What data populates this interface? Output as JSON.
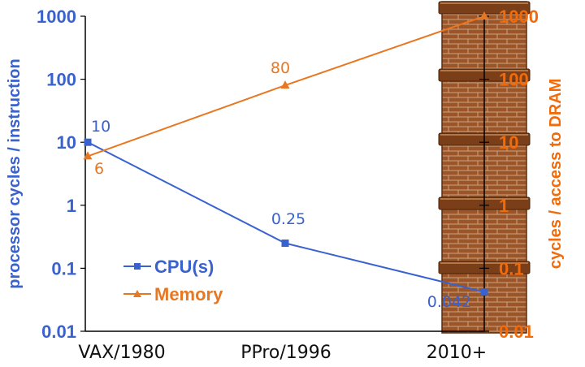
{
  "chart_data": {
    "type": "line",
    "categories": [
      "VAX/1980",
      "PPro/1996",
      "2010+"
    ],
    "series": [
      {
        "name": "CPU(s)",
        "values": [
          10,
          0.25,
          0.042
        ],
        "labels": [
          "10",
          "0.25",
          "0.042"
        ],
        "color": "#3a62cf",
        "marker": "square"
      },
      {
        "name": "Memory",
        "values": [
          6,
          80,
          1000
        ],
        "labels": [
          "6",
          "80",
          ""
        ],
        "color": "#e87722",
        "marker": "triangle"
      }
    ],
    "y_left": {
      "label": "processor cycles / instruction",
      "scale": "log",
      "ylim": [
        0.01,
        1000
      ],
      "ticks": [
        "1000",
        "100",
        "10",
        "1",
        "0.1",
        "0.01"
      ],
      "color": "#3a62cf"
    },
    "y_right": {
      "label": "cycles / access to DRAM",
      "scale": "log",
      "ylim": [
        0.01,
        1000
      ],
      "ticks": [
        "1000",
        "100",
        "10",
        "1",
        "0.1",
        "0.01"
      ],
      "color": "#f26b0a"
    },
    "legend_position": "bottom-left",
    "wall_colors": {
      "brick": "#9b5528",
      "mortar": "#c9a47f",
      "band": "#7a3f18",
      "band_highlight": "#c98a55"
    }
  }
}
